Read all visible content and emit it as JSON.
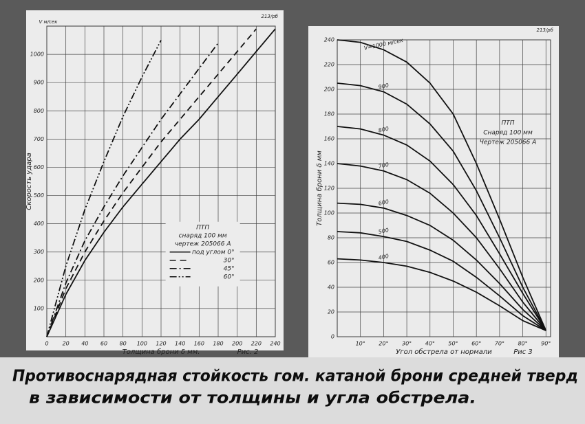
{
  "chart_data": [
    {
      "type": "line",
      "corner_mark": "213/рб",
      "figure_label": "Рис. 2",
      "unit_label": "V м/сек",
      "x_label": "Толщина брони δ мм.",
      "y_label": "Скорость удара",
      "legend": "center",
      "legend_title": [
        "ПТП",
        "снаряд 100 мм",
        "чертеж 205066 А"
      ],
      "x": [
        0,
        20,
        40,
        60,
        80,
        100,
        120,
        140,
        160,
        180,
        200,
        220,
        240
      ],
      "xlim": [
        0,
        240
      ],
      "xticks": [
        0,
        20,
        40,
        60,
        80,
        100,
        120,
        140,
        160,
        180,
        200,
        220,
        240
      ],
      "ylim": [
        0,
        1100
      ],
      "yticks": [
        100,
        200,
        300,
        400,
        500,
        600,
        700,
        800,
        900,
        1000
      ],
      "grid": true,
      "series": [
        {
          "name": "под углом 0°",
          "color": "#111111",
          "dash": "none",
          "values": [
            0,
            150,
            270,
            370,
            460,
            540,
            620,
            700,
            770,
            850,
            930,
            1010,
            1090
          ]
        },
        {
          "name": "30°",
          "color": "#111111",
          "dash": "9 6",
          "values": [
            0,
            170,
            300,
            410,
            510,
            600,
            690,
            770,
            850,
            930,
            1010,
            1090,
            null
          ]
        },
        {
          "name": "45°",
          "color": "#111111",
          "dash": "10 4 2 4",
          "values": [
            0,
            190,
            340,
            460,
            570,
            670,
            770,
            860,
            950,
            1040,
            null,
            null,
            null
          ]
        },
        {
          "name": "60°",
          "color": "#111111",
          "dash": "10 3 2 3 2 3",
          "values": [
            0,
            250,
            450,
            620,
            780,
            920,
            1050,
            null,
            null,
            null,
            null,
            null,
            null
          ]
        }
      ]
    },
    {
      "type": "line",
      "corner_mark": "213/рб",
      "figure_label": "Рис 3",
      "x_label": "Угол обстрела от нормали",
      "y_label": "Толщина брони δ мм",
      "legend": "inline",
      "note": [
        "ПТП",
        "Снаряд 100 мм",
        "Чертеж 205066 А"
      ],
      "x": [
        0,
        10,
        20,
        30,
        40,
        50,
        60,
        70,
        80,
        90
      ],
      "xlim": [
        0,
        92
      ],
      "xticks": [
        {
          "value": 10,
          "label": "10°"
        },
        {
          "value": 20,
          "label": "20°"
        },
        {
          "value": 30,
          "label": "30°"
        },
        {
          "value": 40,
          "label": "40°"
        },
        {
          "value": 50,
          "label": "50°"
        },
        {
          "value": 60,
          "label": "60°"
        },
        {
          "value": 70,
          "label": "70°"
        },
        {
          "value": 80,
          "label": "80°"
        },
        {
          "value": 90,
          "label": "90°"
        }
      ],
      "ylim": [
        0,
        240
      ],
      "yticks": [
        0,
        20,
        40,
        60,
        80,
        100,
        120,
        140,
        160,
        180,
        200,
        220,
        240
      ],
      "grid": true,
      "series": [
        {
          "name": "V=1000 м/сек",
          "color": "#111111",
          "dash": "none",
          "values": [
            240,
            238,
            232,
            222,
            205,
            180,
            140,
            95,
            48,
            5
          ]
        },
        {
          "name": "900",
          "color": "#111111",
          "dash": "none",
          "values": [
            205,
            203,
            198,
            188,
            172,
            150,
            118,
            80,
            40,
            5
          ]
        },
        {
          "name": "800",
          "color": "#111111",
          "dash": "none",
          "values": [
            170,
            168,
            163,
            155,
            142,
            123,
            98,
            67,
            35,
            5
          ]
        },
        {
          "name": "700",
          "color": "#111111",
          "dash": "none",
          "values": [
            140,
            138,
            134,
            127,
            116,
            100,
            80,
            55,
            28,
            5
          ]
        },
        {
          "name": "600",
          "color": "#111111",
          "dash": "none",
          "values": [
            108,
            107,
            104,
            98,
            90,
            78,
            62,
            43,
            22,
            5
          ]
        },
        {
          "name": "500",
          "color": "#111111",
          "dash": "none",
          "values": [
            85,
            84,
            81,
            77,
            70,
            61,
            48,
            33,
            17,
            5
          ]
        },
        {
          "name": "400",
          "color": "#111111",
          "dash": "none",
          "values": [
            63,
            62,
            60,
            57,
            52,
            45,
            36,
            25,
            13,
            5
          ]
        }
      ]
    }
  ],
  "caption": [
    "Противоснарядная стойкость гом. катаной брони средней тверд",
    "в зависимости от толщины и угла обстрела."
  ]
}
